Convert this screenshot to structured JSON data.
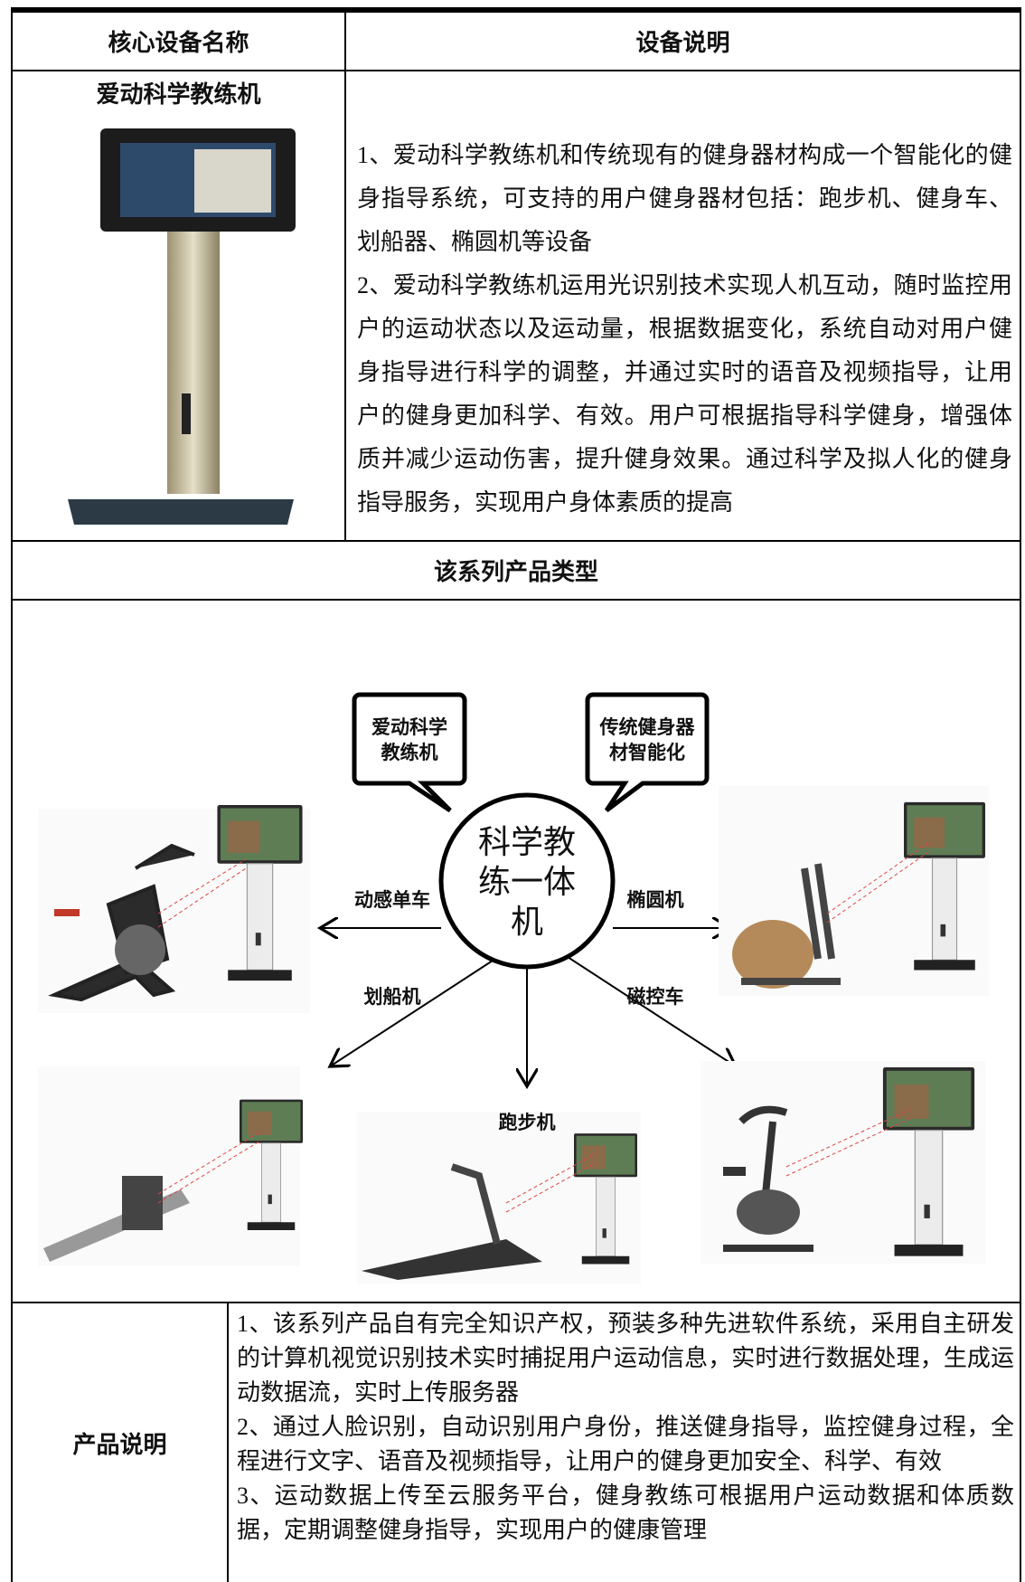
{
  "table": {
    "header": {
      "name_column": "核心设备名称",
      "description_column": "设备说明"
    },
    "device": {
      "name": "爱动科学教练机",
      "description": [
        "1、爱动科学教练机和传统现有的健身器材构成一个智能化的健身指导系统，可支持的用户健身器材包括：跑步机、健身车、划船器、椭圆机等设备",
        "2、爱动科学教练机运用光识别技术实现人机互动，随时监控用户的运动状态以及运动量，根据数据变化，系统自动对用户健身指导进行科学的调整，并通过实时的语音及视频指导，让用户的健身更加科学、有效。用户可根据指导科学健身，增强体质并减少运动伤害，提升健身效果。通过科学及拟人化的健身指导服务，实现用户身体素质的提高"
      ]
    },
    "series_title": "该系列产品类型",
    "diagram": {
      "center": "科学教练一体机",
      "callouts": [
        "爱动科学教练机",
        "传统健身器材智能化"
      ],
      "equipment": [
        "动感单车",
        "椭圆机",
        "划船机",
        "磁控车",
        "跑步机"
      ]
    },
    "product": {
      "label": "产品说明",
      "description": [
        "1、该系列产品自有完全知识产权，预装多种先进软件系统，采用自主研发的计算机视觉识别技术实时捕捉用户运动信息，实时进行数据处理，生成运动数据流，实时上传服务器",
        "2、通过人脸识别，自动识别用户身份，推送健身指导，监控健身过程，全程进行文字、语音及视频指导，让用户的健身更加安全、科学、有效",
        "3、运动数据上传至云服务平台，健身教练可根据用户运动数据和体质数据，定期调整健身指导，实现用户的健康管理"
      ]
    }
  }
}
